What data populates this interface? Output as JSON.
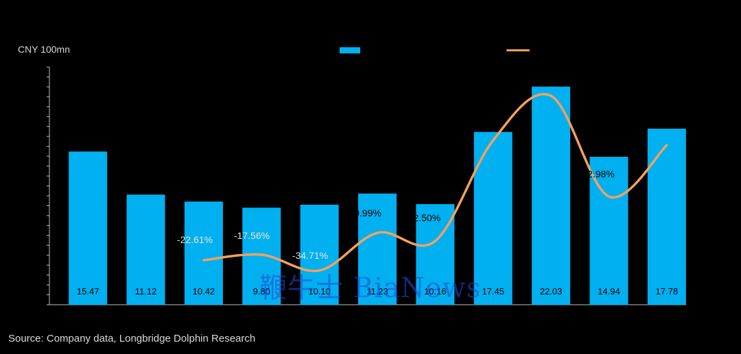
{
  "unit_label": "CNY 100mn",
  "source": "Source: Company data, Longbridge Dolphin Research",
  "watermark": "鞭牛士 BiaNews",
  "colors": {
    "bar": "#00b0f0",
    "line": "#f4a15d",
    "axis": "#bfbfbf",
    "label": "#000000",
    "pct_label": "#e6e6e6"
  },
  "chart_data": {
    "type": "bar",
    "categories": [
      "",
      "",
      "",
      "",
      "",
      "",
      "",
      "",
      "",
      "",
      ""
    ],
    "series": [
      {
        "type": "bar",
        "values": [
          15.47,
          11.12,
          10.42,
          9.8,
          10.1,
          11.23,
          10.16,
          17.45,
          22.03,
          14.94,
          17.78
        ],
        "labels": [
          "15.47",
          "11.12",
          "10.42",
          "9.80",
          "10.10",
          "11.23",
          "10.16",
          "17.45",
          "22.03",
          "14.94",
          "17.78"
        ]
      },
      {
        "type": "line",
        "axis": "secondary",
        "values": [
          null,
          null,
          -22.61,
          -17.56,
          -34.71,
          0.99,
          -2.5,
          null,
          null,
          32.98,
          null
        ],
        "labels": [
          "",
          "",
          "-22.61%",
          "-17.56%",
          "-34.71%",
          "0.99%",
          "-2.50%",
          "",
          "",
          "32.98%",
          ""
        ]
      }
    ],
    "ylim": [
      0,
      24
    ],
    "grid": false,
    "legend_position": "top"
  }
}
